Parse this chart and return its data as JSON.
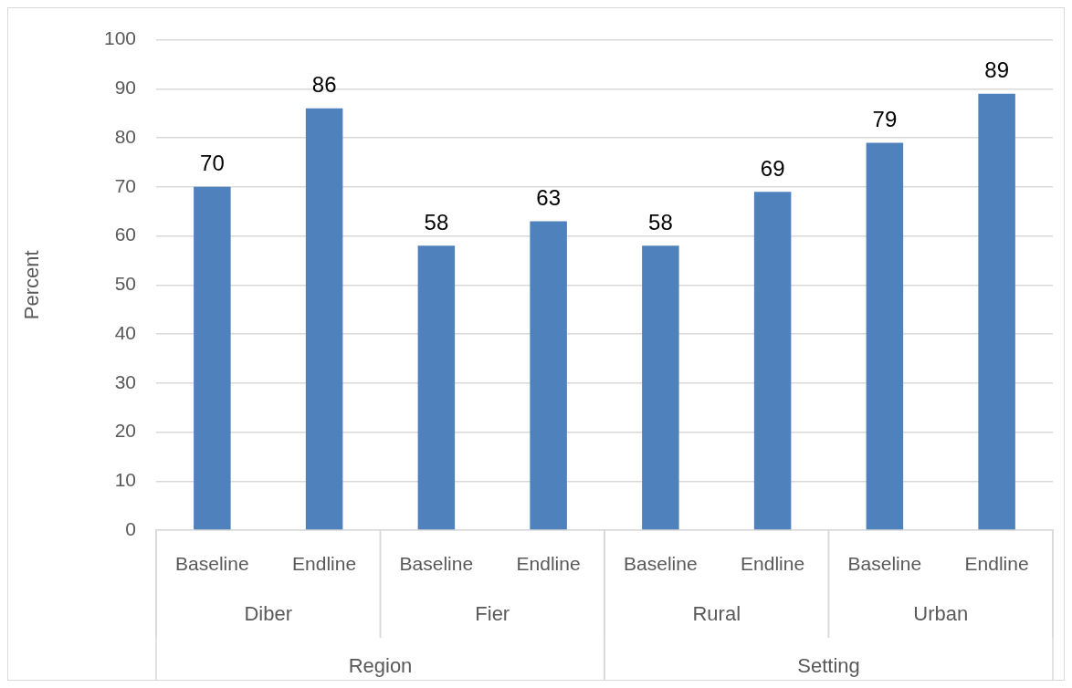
{
  "chart_data": {
    "type": "bar",
    "ylabel": "Percent",
    "categories": [
      "Baseline",
      "Endline",
      "Baseline",
      "Endline",
      "Baseline",
      "Endline",
      "Baseline",
      "Endline"
    ],
    "values": [
      70,
      86,
      58,
      63,
      58,
      69,
      79,
      89
    ],
    "color": "#4f81bd",
    "ylim": [
      0,
      100
    ],
    "yticks": [
      0,
      10,
      20,
      30,
      40,
      50,
      60,
      70,
      80,
      90,
      100
    ],
    "grid": "y",
    "data_labels": true,
    "annotations": [
      "Diber",
      "Fier",
      "Rural",
      "Urban",
      "Region",
      "Setting"
    ]
  }
}
